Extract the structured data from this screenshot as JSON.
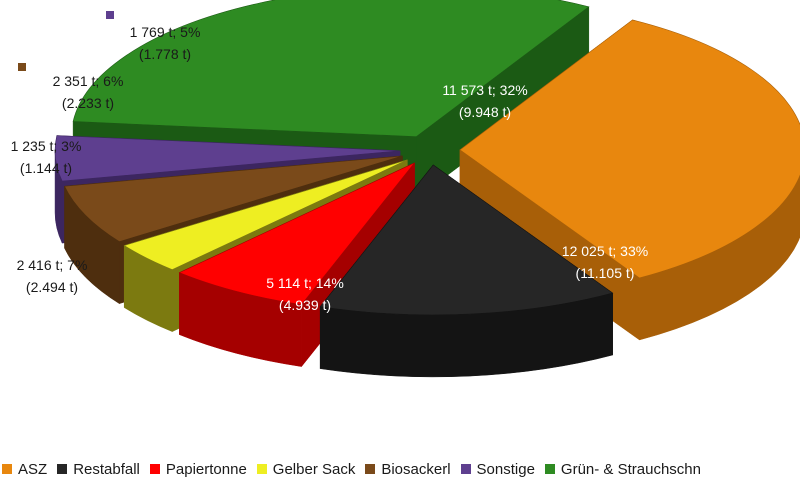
{
  "chart_data": {
    "type": "pie",
    "title": "",
    "categories": [
      "ASZ",
      "Restabfall",
      "Papiertonne",
      "Gelber Sack",
      "Biosackerl",
      "Sonstige",
      "Grün- & Strauchschn"
    ],
    "values": [
      12025,
      5114,
      2416,
      1235,
      2351,
      1769,
      11573
    ],
    "previous_values": [
      11105,
      4939,
      2494,
      1144,
      2233,
      1778,
      9948
    ],
    "labels": [
      {
        "line1": "12 025 t; 33%",
        "line2": "(11.105 t)"
      },
      {
        "line1": "5 114 t; 14%",
        "line2": "(4.939 t)"
      },
      {
        "line1": "2 416 t; 7%",
        "line2": "(2.494 t)"
      },
      {
        "line1": "1 235 t; 3%",
        "line2": "(1.144 t)"
      },
      {
        "line1": "2 351 t; 6%",
        "line2": "(2.233 t)"
      },
      {
        "line1": "1 769 t; 5%",
        "line2": "(1.778 t)"
      },
      {
        "line1": "11 573 t; 32%",
        "line2": "(9.948 t)"
      }
    ],
    "colors": [
      "#E8870E",
      "#262626",
      "#FF0000",
      "#EEEE22",
      "#7A4A1A",
      "#5E3F8F",
      "#2E8B22"
    ],
    "side_colors": [
      "#A85F08",
      "#141414",
      "#A50000",
      "#7C7A10",
      "#4E2E0E",
      "#3C2660",
      "#1B5A14"
    ],
    "style": "3d-exploded",
    "legend_position": "bottom"
  }
}
